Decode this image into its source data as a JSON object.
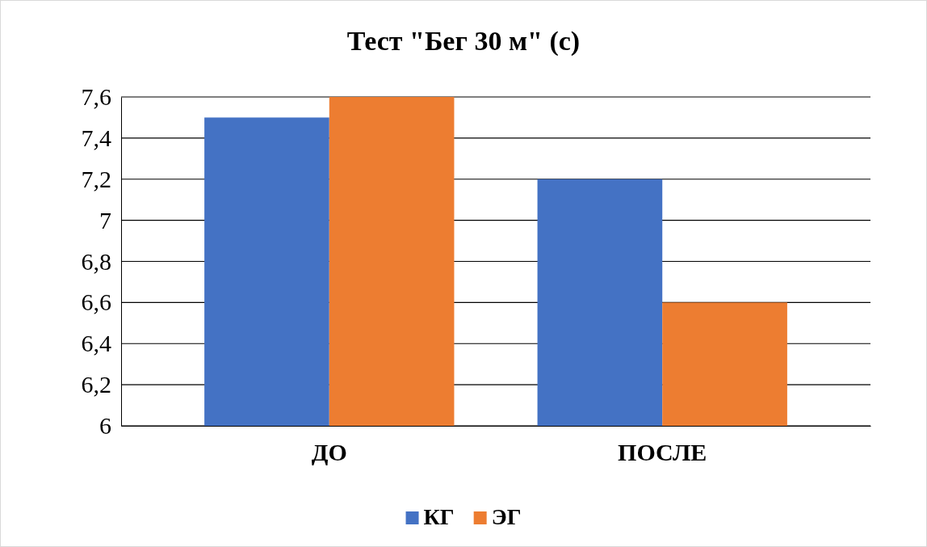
{
  "chart_data": {
    "type": "bar",
    "title": "Тест \"Бег 30 м\" (с)",
    "categories": [
      "ДО",
      "ПОСЛЕ"
    ],
    "series": [
      {
        "name": "КГ",
        "color": "#4472c4",
        "values": [
          7.5,
          7.2
        ]
      },
      {
        "name": "ЭГ",
        "color": "#ed7d31",
        "values": [
          7.6,
          6.6
        ]
      }
    ],
    "ylim": [
      6,
      7.6
    ],
    "yticks": [
      {
        "value": 6,
        "label": "6"
      },
      {
        "value": 6.2,
        "label": "6,2"
      },
      {
        "value": 6.4,
        "label": "6,4"
      },
      {
        "value": 6.6,
        "label": "6,6"
      },
      {
        "value": 6.8,
        "label": "6,8"
      },
      {
        "value": 7,
        "label": "7"
      },
      {
        "value": 7.2,
        "label": "7,2"
      },
      {
        "value": 7.4,
        "label": "7,4"
      },
      {
        "value": 7.6,
        "label": "7,6"
      }
    ],
    "grid": true,
    "legend": "bottom"
  }
}
